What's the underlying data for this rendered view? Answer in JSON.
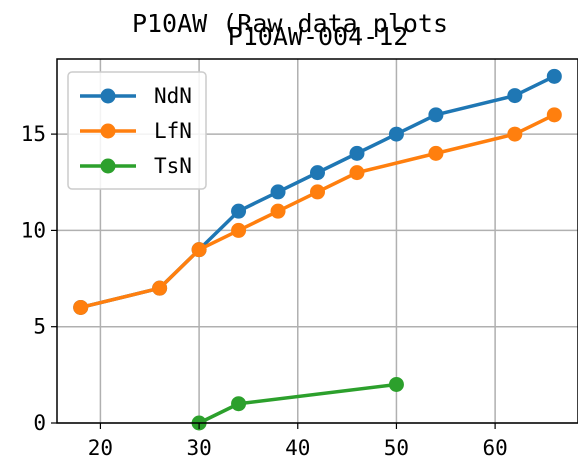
{
  "chart_data": {
    "type": "line",
    "suptitle": "P10AW (Raw data plots",
    "title": "P10AW-004-12",
    "xlabel": "",
    "ylabel": "",
    "xlim": [
      15.6,
      68.4
    ],
    "ylim": [
      0,
      18.9
    ],
    "xticks": [
      20,
      30,
      40,
      50,
      60
    ],
    "yticks": [
      0,
      5,
      10,
      15
    ],
    "grid": true,
    "legend_position": "top-left",
    "series": [
      {
        "name": "NdN",
        "color": "#1f77b4",
        "x": [
          18,
          26,
          30,
          34,
          38,
          42,
          46,
          50,
          54,
          62,
          66
        ],
        "y": [
          6,
          7,
          9,
          11,
          12,
          13,
          14,
          15,
          16,
          17,
          18
        ]
      },
      {
        "name": "LfN",
        "color": "#ff7f0e",
        "x": [
          18,
          26,
          30,
          34,
          38,
          42,
          46,
          54,
          62,
          66
        ],
        "y": [
          6,
          7,
          9,
          10,
          11,
          12,
          13,
          14,
          15,
          16
        ]
      },
      {
        "name": "TsN",
        "color": "#2ca02c",
        "x": [
          30,
          34,
          50
        ],
        "y": [
          0,
          1,
          2
        ]
      }
    ]
  }
}
